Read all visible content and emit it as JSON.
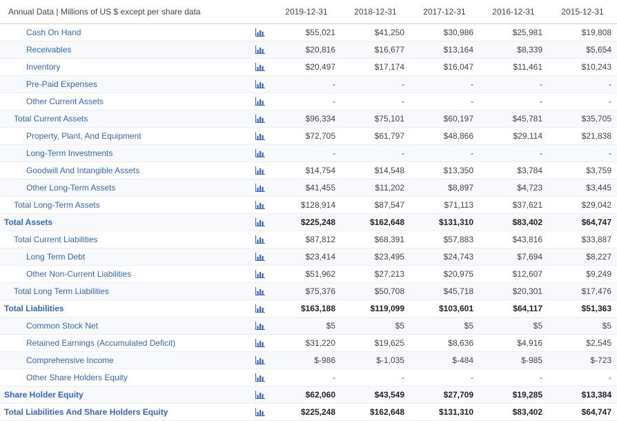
{
  "header_label": "Annual Data | Millions of US $ except per share data",
  "columns": [
    "2019-12-31",
    "2018-12-31",
    "2017-12-31",
    "2016-12-31",
    "2015-12-31"
  ],
  "link_color": "#3366cc",
  "text_color": "#444444",
  "stripe_color": "#f7f9fc",
  "border_color": "#eeeeee",
  "chart_icon_name": "bar-chart-icon",
  "rows": [
    {
      "label": "Cash On Hand",
      "indent": 2,
      "bold": false,
      "values": [
        "$55,021",
        "$41,250",
        "$30,986",
        "$25,981",
        "$19,808"
      ]
    },
    {
      "label": "Receivables",
      "indent": 2,
      "bold": false,
      "values": [
        "$20,816",
        "$16,677",
        "$13,164",
        "$8,339",
        "$5,654"
      ]
    },
    {
      "label": "Inventory",
      "indent": 2,
      "bold": false,
      "values": [
        "$20,497",
        "$17,174",
        "$16,047",
        "$11,461",
        "$10,243"
      ]
    },
    {
      "label": "Pre-Paid Expenses",
      "indent": 2,
      "bold": false,
      "values": [
        "-",
        "-",
        "-",
        "-",
        "-"
      ]
    },
    {
      "label": "Other Current Assets",
      "indent": 2,
      "bold": false,
      "values": [
        "-",
        "-",
        "-",
        "-",
        "-"
      ]
    },
    {
      "label": "Total Current Assets",
      "indent": 1,
      "bold": false,
      "values": [
        "$96,334",
        "$75,101",
        "$60,197",
        "$45,781",
        "$35,705"
      ]
    },
    {
      "label": "Property, Plant, And Equipment",
      "indent": 2,
      "bold": false,
      "values": [
        "$72,705",
        "$61,797",
        "$48,866",
        "$29,114",
        "$21,838"
      ]
    },
    {
      "label": "Long-Term Investments",
      "indent": 2,
      "bold": false,
      "values": [
        "-",
        "-",
        "-",
        "-",
        "-"
      ]
    },
    {
      "label": "Goodwill And Intangible Assets",
      "indent": 2,
      "bold": false,
      "values": [
        "$14,754",
        "$14,548",
        "$13,350",
        "$3,784",
        "$3,759"
      ]
    },
    {
      "label": "Other Long-Term Assets",
      "indent": 2,
      "bold": false,
      "values": [
        "$41,455",
        "$11,202",
        "$8,897",
        "$4,723",
        "$3,445"
      ]
    },
    {
      "label": "Total Long-Term Assets",
      "indent": 1,
      "bold": false,
      "values": [
        "$128,914",
        "$87,547",
        "$71,113",
        "$37,621",
        "$29,042"
      ]
    },
    {
      "label": "Total Assets",
      "indent": 0,
      "bold": true,
      "values": [
        "$225,248",
        "$162,648",
        "$131,310",
        "$83,402",
        "$64,747"
      ]
    },
    {
      "label": "Total Current Liabilities",
      "indent": 1,
      "bold": false,
      "values": [
        "$87,812",
        "$68,391",
        "$57,883",
        "$43,816",
        "$33,887"
      ]
    },
    {
      "label": "Long Term Debt",
      "indent": 2,
      "bold": false,
      "values": [
        "$23,414",
        "$23,495",
        "$24,743",
        "$7,694",
        "$8,227"
      ]
    },
    {
      "label": "Other Non-Current Liabilities",
      "indent": 2,
      "bold": false,
      "values": [
        "$51,962",
        "$27,213",
        "$20,975",
        "$12,607",
        "$9,249"
      ]
    },
    {
      "label": "Total Long Term Liabilities",
      "indent": 1,
      "bold": false,
      "values": [
        "$75,376",
        "$50,708",
        "$45,718",
        "$20,301",
        "$17,476"
      ]
    },
    {
      "label": "Total Liabilities",
      "indent": 0,
      "bold": true,
      "values": [
        "$163,188",
        "$119,099",
        "$103,601",
        "$64,117",
        "$51,363"
      ]
    },
    {
      "label": "Common Stock Net",
      "indent": 2,
      "bold": false,
      "values": [
        "$5",
        "$5",
        "$5",
        "$5",
        "$5"
      ]
    },
    {
      "label": "Retained Earnings (Accumulated Deficit)",
      "indent": 2,
      "bold": false,
      "values": [
        "$31,220",
        "$19,625",
        "$8,636",
        "$4,916",
        "$2,545"
      ]
    },
    {
      "label": "Comprehensive Income",
      "indent": 2,
      "bold": false,
      "values": [
        "$-986",
        "$-1,035",
        "$-484",
        "$-985",
        "$-723"
      ]
    },
    {
      "label": "Other Share Holders Equity",
      "indent": 2,
      "bold": false,
      "values": [
        "-",
        "-",
        "-",
        "-",
        "-"
      ]
    },
    {
      "label": "Share Holder Equity",
      "indent": 0,
      "bold": true,
      "values": [
        "$62,060",
        "$43,549",
        "$27,709",
        "$19,285",
        "$13,384"
      ]
    },
    {
      "label": "Total Liabilities And Share Holders Equity",
      "indent": 0,
      "bold": true,
      "values": [
        "$225,248",
        "$162,648",
        "$131,310",
        "$83,402",
        "$64,747"
      ]
    }
  ]
}
